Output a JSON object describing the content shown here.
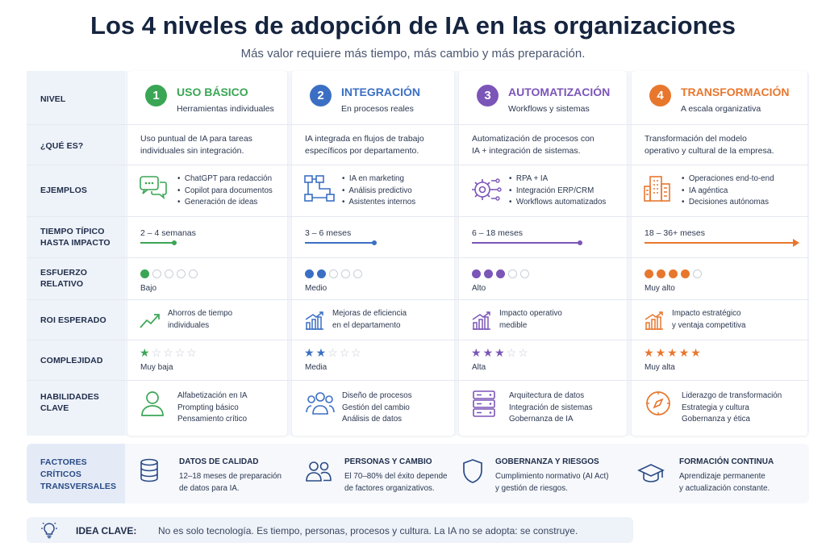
{
  "title": "Los 4 niveles de adopción de IA en las organizaciones",
  "subtitle": "Más valor requiere más tiempo, más cambio y más preparación.",
  "row_labels": {
    "nivel": "NIVEL",
    "que_es": "¿QUÉ ES?",
    "ejemplos": "EJEMPLOS",
    "tiempo_1": "TIEMPO TÍPICO",
    "tiempo_2": "HASTA IMPACTO",
    "esfuerzo_1": "ESFUERZO",
    "esfuerzo_2": "RELATIVO",
    "roi": "ROI ESPERADO",
    "complejidad": "COMPLEJIDAD",
    "habilidades_1": "HABILIDADES",
    "habilidades_2": "CLAVE"
  },
  "levels": [
    {
      "number": "1",
      "name": "USO BÁSICO",
      "subtitle": "Herramientas individuales",
      "color": "#3aa655",
      "what_1": "Uso puntual de IA para tareas",
      "what_2": "individuales sin integración.",
      "examples": [
        "ChatGPT para redacción",
        "Copilot para documentos",
        "Generación de ideas"
      ],
      "example_icon": "chat-bubbles-icon",
      "time": "2 – 4 semanas",
      "time_fraction": 0.25,
      "effort_level": 1,
      "effort_label": "Bajo",
      "roi_1": "Ahorros de tiempo",
      "roi_2": "individuales",
      "complexity_level": 1,
      "complexity_label": "Muy baja",
      "skills": [
        "Alfabetización en IA",
        "Prompting básico",
        "Pensamiento crítico"
      ],
      "skills_icon": "person-icon"
    },
    {
      "number": "2",
      "name": "INTEGRACIÓN",
      "subtitle": "En procesos reales",
      "color": "#3b6fc4",
      "what_1": "IA integrada en flujos de trabajo",
      "what_2": "específicos por departamento.",
      "examples": [
        "IA en marketing",
        "Análisis predictivo",
        "Asistentes internos"
      ],
      "example_icon": "flowchart-icon",
      "time": "3 – 6 meses",
      "time_fraction": 0.5,
      "effort_level": 2,
      "effort_label": "Medio",
      "roi_1": "Mejoras de eficiencia",
      "roi_2": "en el departamento",
      "complexity_level": 2,
      "complexity_label": "Media",
      "skills": [
        "Diseño de procesos",
        "Gestión del cambio",
        "Análisis de datos"
      ],
      "skills_icon": "team-icon"
    },
    {
      "number": "3",
      "name": "AUTOMATIZACIÓN",
      "subtitle": "Workflows y sistemas",
      "color": "#7b55b8",
      "what_1": "Automatización de procesos con",
      "what_2": "IA + integración de sistemas.",
      "examples": [
        "RPA + IA",
        "Integración ERP/CRM",
        "Workflows automatizados"
      ],
      "example_icon": "gear-circuit-icon",
      "time": "6 – 18 meses",
      "time_fraction": 0.75,
      "effort_level": 3,
      "effort_label": "Alto",
      "roi_1": "Impacto operativo",
      "roi_2": "medible",
      "complexity_level": 3,
      "complexity_label": "Alta",
      "skills": [
        "Arquitectura de datos",
        "Integración de sistemas",
        "Gobernanza de IA"
      ],
      "skills_icon": "server-icon"
    },
    {
      "number": "4",
      "name": "TRANSFORMACIÓN",
      "subtitle": "A escala organizativa",
      "color": "#e8772e",
      "what_1": "Transformación del modelo",
      "what_2": "operativo y cultural de la empresa.",
      "examples": [
        "Operaciones end-to-end",
        "IA agéntica",
        "Decisiones autónomas"
      ],
      "example_icon": "building-icon",
      "time": "18 – 36+ meses",
      "time_fraction": 1,
      "effort_level": 4,
      "effort_label": "Muy alto",
      "roi_1": "Impacto estratégico",
      "roi_2": "y ventaja competitiva",
      "complexity_level": 5,
      "complexity_label": "Muy alta",
      "skills": [
        "Liderazgo de transformación",
        "Estrategia y cultura",
        "Gobernanza y ética"
      ],
      "skills_icon": "compass-icon"
    }
  ],
  "factors": {
    "label_1": "FACTORES",
    "label_2": "CRÍTICOS",
    "label_3": "TRANSVERSALES",
    "items": [
      {
        "icon": "database-icon",
        "title": "DATOS DE CALIDAD",
        "text_1": "12–18 meses de preparación",
        "text_2": "de datos para IA."
      },
      {
        "icon": "people-icon",
        "title": "PERSONAS Y CAMBIO",
        "text_1": "El 70–80% del éxito depende",
        "text_2": "de factores organizativos."
      },
      {
        "icon": "shield-icon",
        "title": "GOBERNANZA Y RIESGOS",
        "text_1": "Cumplimiento normativo (AI Act)",
        "text_2": "y gestión de riesgos."
      },
      {
        "icon": "graduation-cap-icon",
        "title": "FORMACIÓN CONTINUA",
        "text_1": "Aprendizaje permanente",
        "text_2": "y actualización constante."
      }
    ]
  },
  "idea": {
    "icon": "lightbulb-icon",
    "label": "IDEA CLAVE:",
    "text": "No es solo tecnología. Es tiempo, personas, procesos y cultura. La IA no se adopta: se construye."
  }
}
